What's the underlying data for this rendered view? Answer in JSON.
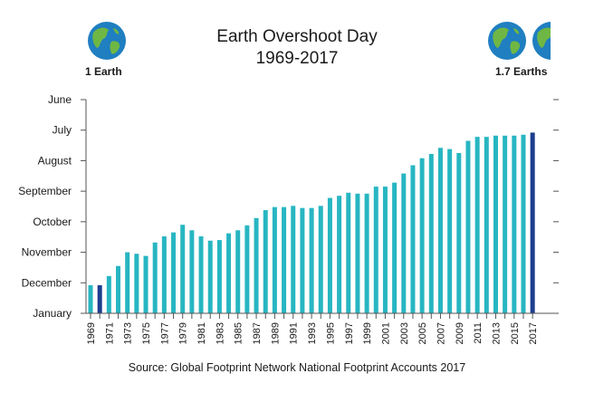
{
  "chart_data": {
    "type": "bar",
    "title": "Earth Overshoot Day",
    "subtitle": "1969-2017",
    "source": "Source: Global Footprint Network National Footprint Accounts 2017",
    "left_marker_label": "1 Earth",
    "right_marker_label": "1.7 Earths",
    "xlabel": "",
    "ylabel": "",
    "y_tick_labels": [
      "June",
      "July",
      "August",
      "September",
      "October",
      "November",
      "December",
      "January"
    ],
    "ylim_months_before_year_end": [
      0,
      7
    ],
    "x_tick_labels": [
      "1969",
      "1971",
      "1973",
      "1975",
      "1977",
      "1979",
      "1981",
      "1983",
      "1985",
      "1987",
      "1989",
      "1991",
      "1993",
      "1995",
      "1997",
      "1999",
      "2001",
      "2003",
      "2005",
      "2007",
      "2009",
      "2011",
      "2013",
      "2015",
      "2017"
    ],
    "categories": [
      1969,
      1970,
      1971,
      1972,
      1973,
      1974,
      1975,
      1976,
      1977,
      1978,
      1979,
      1980,
      1981,
      1982,
      1983,
      1984,
      1985,
      1986,
      1987,
      1988,
      1989,
      1990,
      1991,
      1992,
      1993,
      1994,
      1995,
      1996,
      1997,
      1998,
      1999,
      2000,
      2001,
      2002,
      2003,
      2004,
      2005,
      2006,
      2007,
      2008,
      2009,
      2010,
      2011,
      2012,
      2013,
      2014,
      2015,
      2016,
      2017
    ],
    "values": [
      0.92,
      0.92,
      1.22,
      1.55,
      2.0,
      1.95,
      1.88,
      2.32,
      2.52,
      2.65,
      2.9,
      2.72,
      2.52,
      2.38,
      2.4,
      2.62,
      2.72,
      2.88,
      3.12,
      3.38,
      3.48,
      3.48,
      3.52,
      3.45,
      3.45,
      3.52,
      3.78,
      3.85,
      3.95,
      3.92,
      3.92,
      4.15,
      4.15,
      4.28,
      4.58,
      4.85,
      5.08,
      5.22,
      5.42,
      5.38,
      5.25,
      5.65,
      5.78,
      5.78,
      5.82,
      5.82,
      5.82,
      5.85,
      5.92
    ],
    "value_unit": "months before year end (bar height measured from the January baseline)",
    "highlighted_categories": [
      1970,
      2017
    ],
    "colors": {
      "bar": "#27b6c2",
      "bar_highlight": "#1d3e8e",
      "axis": "#555555",
      "ocean": "#1f7fc0",
      "land": "#6fb744"
    }
  }
}
